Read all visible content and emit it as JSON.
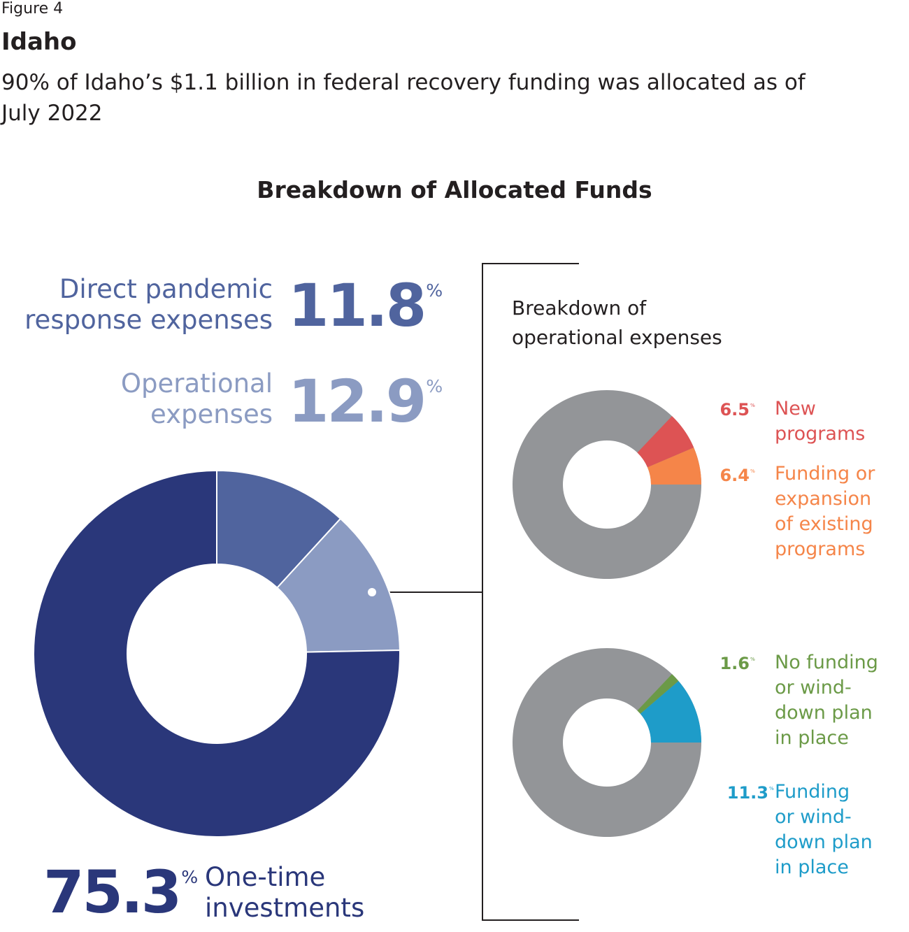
{
  "figure_label": "Figure 4",
  "title": "Idaho",
  "subtitle": "90% of Idaho’s $1.1 billion in federal recovery funding was allocated as of July 2022",
  "chart_data": [
    {
      "type": "donut",
      "title": "Breakdown of Allocated Funds",
      "categories": [
        "Direct pandemic\nresponse expenses",
        "Operational\nexpenses",
        "One-time\ninvestments"
      ],
      "values": [
        11.8,
        12.9,
        75.3
      ],
      "unit": "%",
      "colors": [
        "#50649e",
        "#8b9bc2",
        "#2a377a"
      ]
    },
    {
      "type": "donut",
      "title": "Breakdown of\noperational expenses",
      "categories": [
        "New\nprograms",
        "Funding or\nexpansion\nof existing\nprograms"
      ],
      "values": [
        6.5,
        6.4
      ],
      "unit": "%",
      "colors": [
        "#dd5354",
        "#f58549"
      ],
      "rest_color": "#939598"
    },
    {
      "type": "donut",
      "categories": [
        "No funding\nor wind-\ndown plan\nin place",
        "Funding\nor wind-\ndown plan\nin place"
      ],
      "values": [
        1.6,
        11.3
      ],
      "unit": "%",
      "colors": [
        "#6b9a47",
        "#1e9cc9"
      ],
      "rest_color": "#939598"
    }
  ]
}
